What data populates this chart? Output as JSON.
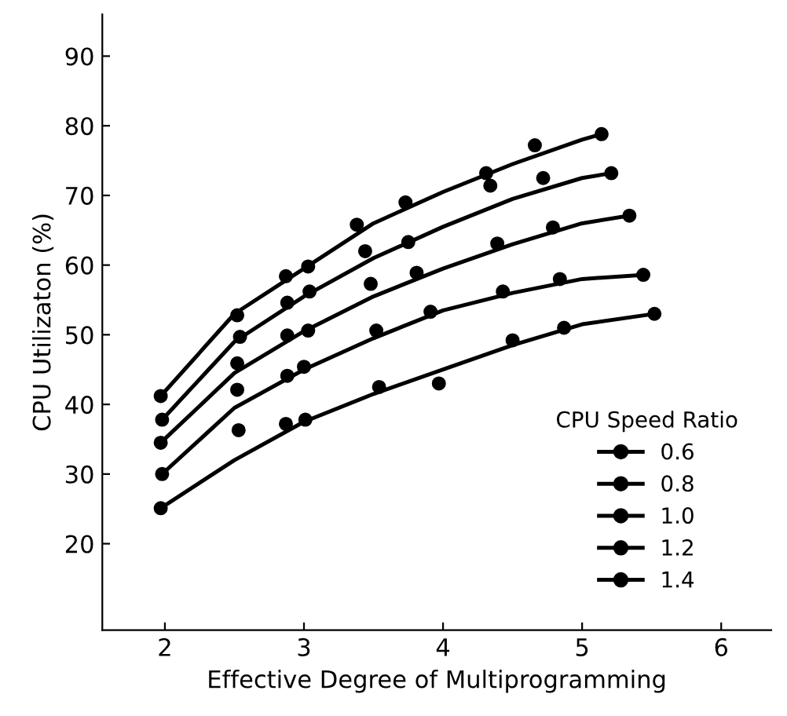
{
  "chart_data": {
    "type": "scatter",
    "xlabel": "Effective Degree of Multiprogramming",
    "ylabel": "CPU Utilizaton (%)",
    "legend_title": "CPU Speed Ratio",
    "legend": "bottom right",
    "grid": false,
    "marker": "circle",
    "xlim": [
      1.55,
      6.36
    ],
    "ylim": [
      7.6,
      96
    ],
    "xticks": [
      2,
      3,
      4,
      5,
      6
    ],
    "yticks": [
      20,
      30,
      40,
      50,
      60,
      70,
      80,
      90
    ],
    "series": [
      {
        "name": "0.6",
        "color": "#000000",
        "x": [
          1.97,
          2.52,
          2.87,
          3.03,
          3.38,
          3.73,
          4.31,
          4.66,
          5.14
        ],
        "values": [
          41.2,
          52.8,
          58.4,
          59.8,
          65.8,
          69.0,
          73.2,
          77.2,
          78.8
        ]
      },
      {
        "name": "0.8",
        "color": "#000000",
        "x": [
          1.98,
          2.54,
          2.88,
          3.04,
          3.44,
          3.75,
          4.34,
          4.72,
          5.21
        ],
        "values": [
          37.8,
          49.7,
          54.6,
          56.2,
          62.0,
          63.3,
          71.4,
          72.5,
          73.2
        ]
      },
      {
        "name": "1.0",
        "color": "#000000",
        "x": [
          1.97,
          2.52,
          2.88,
          3.03,
          3.48,
          3.81,
          4.39,
          4.79,
          5.34
        ],
        "values": [
          34.5,
          45.9,
          49.9,
          50.6,
          57.3,
          58.9,
          63.1,
          65.4,
          67.1
        ]
      },
      {
        "name": "1.2",
        "color": "#000000",
        "x": [
          1.98,
          2.52,
          2.88,
          3.0,
          3.52,
          3.91,
          4.43,
          4.84,
          5.44
        ],
        "values": [
          30.0,
          42.1,
          44.1,
          45.4,
          50.6,
          53.3,
          56.2,
          58.0,
          58.6
        ]
      },
      {
        "name": "1.4",
        "color": "#000000",
        "x": [
          1.97,
          2.53,
          2.87,
          3.01,
          3.54,
          3.97,
          4.5,
          4.87,
          5.52
        ],
        "values": [
          25.1,
          36.3,
          37.2,
          37.8,
          42.5,
          43.0,
          49.2,
          51.0,
          53.0
        ]
      },
      {
        "type": "line",
        "marker": "none",
        "color": "#000000",
        "x": [
          1.97,
          2.5,
          3,
          3.5,
          4,
          4.5,
          5,
          5.14
        ],
        "values": [
          41.2,
          53,
          59.5,
          66,
          70.5,
          74.5,
          78,
          78.8
        ]
      },
      {
        "type": "line",
        "marker": "none",
        "color": "#000000",
        "x": [
          1.98,
          2.5,
          3,
          3.5,
          4,
          4.5,
          5,
          5.21
        ],
        "values": [
          37.8,
          49,
          55.5,
          61,
          65.5,
          69.5,
          72.5,
          73.2
        ]
      },
      {
        "type": "line",
        "marker": "none",
        "color": "#000000",
        "x": [
          1.97,
          2.5,
          3,
          3.5,
          4,
          4.5,
          5,
          5.34
        ],
        "values": [
          34.5,
          44.5,
          50.5,
          55.5,
          59.5,
          63,
          66,
          67.1
        ]
      },
      {
        "type": "line",
        "marker": "none",
        "color": "#000000",
        "x": [
          1.98,
          2.5,
          3,
          3.5,
          4,
          4.5,
          5,
          5.44
        ],
        "values": [
          30,
          39.5,
          45,
          49.5,
          53.5,
          56,
          58,
          58.6
        ]
      },
      {
        "type": "line",
        "marker": "none",
        "color": "#000000",
        "x": [
          1.97,
          2.5,
          3,
          3.5,
          4,
          4.5,
          5,
          5.52
        ],
        "values": [
          25.1,
          32,
          37.5,
          41.5,
          45,
          48.5,
          51.5,
          53
        ]
      }
    ]
  }
}
